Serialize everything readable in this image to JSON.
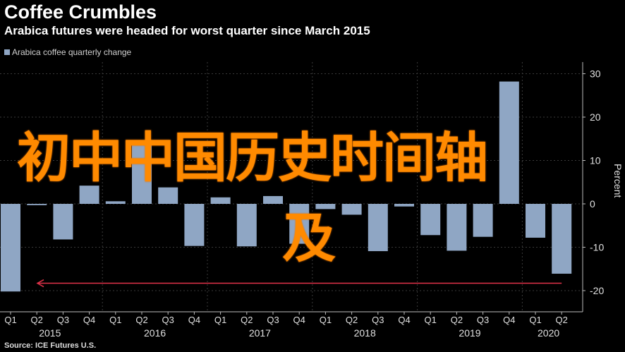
{
  "header": {
    "title": "Coffee Crumbles",
    "subtitle": "Arabica futures were headed for worst quarter since March 2015",
    "legend_label": "Arabica coffee quarterly change",
    "source": "Source: ICE Futures U.S."
  },
  "overlay": {
    "line1": "初中中国历史时间轴",
    "line2": "及"
  },
  "colors": {
    "background": "#000000",
    "bar": "#8fa6c4",
    "grid": "#3a3a3a",
    "annotation_line": "#e0334a",
    "overlay_text": "#ff8a00"
  },
  "chart_data": {
    "type": "bar",
    "title": "Coffee Crumbles",
    "subtitle": "Arabica futures were headed for worst quarter since March 2015",
    "ylabel": "Percent",
    "ylim": [
      -22,
      32
    ],
    "yticks": [
      -20,
      -10,
      0,
      10,
      20,
      30
    ],
    "grid": true,
    "legend_position": "top-left",
    "categories": [
      "2015 Q1",
      "2015 Q2",
      "2015 Q3",
      "2015 Q4",
      "2016 Q1",
      "2016 Q2",
      "2016 Q3",
      "2016 Q4",
      "2017 Q1",
      "2017 Q2",
      "2017 Q3",
      "2017 Q4",
      "2018 Q1",
      "2018 Q2",
      "2018 Q3",
      "2018 Q4",
      "2019 Q1",
      "2019 Q2",
      "2019 Q3",
      "2019 Q4",
      "2020 Q1",
      "2020 Q2"
    ],
    "quarter_labels": [
      "Q1",
      "Q2",
      "Q3",
      "Q4",
      "Q1",
      "Q2",
      "Q3",
      "Q4",
      "Q1",
      "Q2",
      "Q3",
      "Q4",
      "Q1",
      "Q2",
      "Q3",
      "Q4",
      "Q1",
      "Q2",
      "Q3",
      "Q4",
      "Q1",
      "Q2"
    ],
    "year_labels": [
      "2015",
      "2016",
      "2017",
      "2018",
      "2019",
      "2020"
    ],
    "series": [
      {
        "name": "Arabica coffee quarterly change",
        "values": [
          -20.2,
          -0.3,
          -8.2,
          4.2,
          0.6,
          14.2,
          3.8,
          -9.7,
          1.5,
          -9.8,
          1.8,
          -9.2,
          -1.2,
          -2.5,
          -10.9,
          -0.6,
          -7.2,
          -10.8,
          -7.6,
          28.2,
          -7.8,
          -16.1
        ]
      }
    ],
    "annotations": [
      {
        "type": "arrow",
        "from_y": -18.3,
        "to_y": -18.3,
        "from_index": 21,
        "to_index": 0
      }
    ]
  }
}
